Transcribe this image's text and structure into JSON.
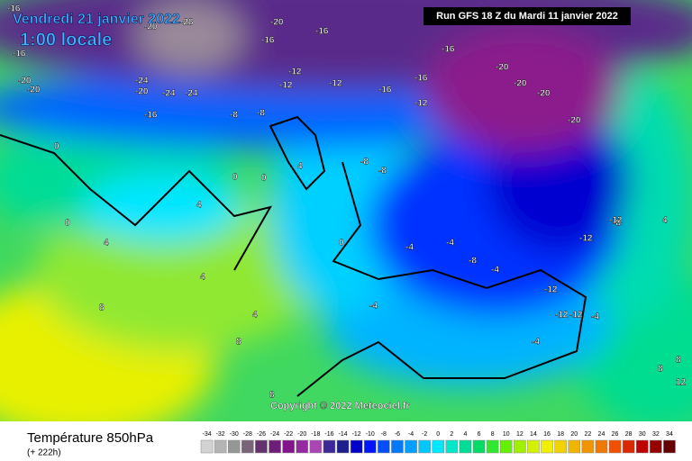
{
  "header": {
    "date": "Vendredi 21 janvier 2022",
    "time": "1:00 locale",
    "run": "Run GFS 18 Z du Mardi 11 janvier 2022"
  },
  "copyright": "Copyright © 2022 Meteociel.fr",
  "footer": {
    "title": "Température 850hPa",
    "lead": "(+ 222h)"
  },
  "scale": {
    "labels": [
      -34,
      -32,
      -30,
      -28,
      -26,
      -24,
      -22,
      -20,
      -18,
      -16,
      -14,
      -12,
      -10,
      -8,
      -6,
      -4,
      -2,
      0,
      2,
      4,
      6,
      8,
      10,
      12,
      14,
      16,
      18,
      20,
      22,
      24,
      26,
      28,
      30,
      32,
      34
    ],
    "colors": [
      "#d2d2d2",
      "#b4b4b4",
      "#969696",
      "#7a6478",
      "#64326e",
      "#6e1e78",
      "#82148c",
      "#9628a0",
      "#aa46b4",
      "#3c2896",
      "#1e1e8c",
      "#0000c8",
      "#0014ff",
      "#0050ff",
      "#0078ff",
      "#00a0ff",
      "#00c8ff",
      "#00e6ff",
      "#00e6c8",
      "#00dc96",
      "#00dc64",
      "#32e632",
      "#64f000",
      "#a0f000",
      "#d2f000",
      "#f0f000",
      "#f0d200",
      "#f0b400",
      "#f09600",
      "#f07800",
      "#f05000",
      "#dc2800",
      "#be0000",
      "#960000",
      "#640000"
    ]
  },
  "map_labels": [
    "-16",
    "-20",
    "-20",
    "-28",
    "-16",
    "-20",
    "-16",
    "-20",
    "-24",
    "-24",
    "-24",
    "-20",
    "-16",
    "-16",
    "-12",
    "-12",
    "-12",
    "-16",
    "-16",
    "-12",
    "-16",
    "-20",
    "-20",
    "-20",
    "-20",
    "-20",
    "-8",
    "-8",
    "-8",
    "-8",
    "0",
    "0",
    "4",
    "0",
    "4",
    "0",
    "4",
    "4",
    "4",
    "0",
    "-4",
    "-4",
    "-8",
    "-4",
    "-12",
    "-12",
    "-12",
    "-8",
    "-4",
    "-12",
    "-12",
    "-4",
    "-4",
    "8",
    "8",
    "8",
    "4",
    "8",
    "8",
    "12"
  ]
}
